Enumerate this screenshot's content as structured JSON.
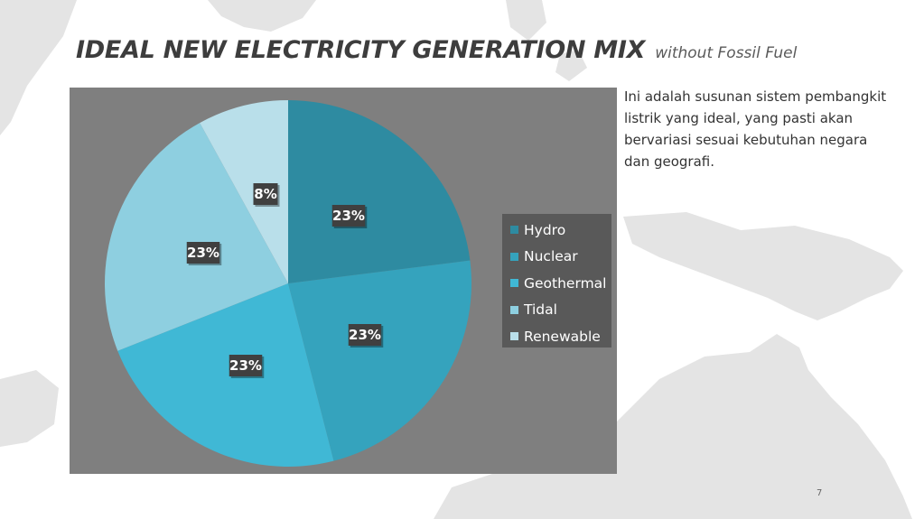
{
  "slide": {
    "title": "IDEAL NEW ELECTRICITY GENERATION MIX",
    "subtitle": "without Fossil Fuel",
    "description": "Ini adalah susunan sistem pembangkit listrik yang ideal, yang pasti akan bervariasi sesuai kebutuhan negara dan geografi.",
    "page_number": "7"
  },
  "chart_data": {
    "type": "pie",
    "categories": [
      "Hydro",
      "Nuclear",
      "Geothermal",
      "Tidal",
      "Renewable"
    ],
    "values": [
      23,
      23,
      23,
      23,
      8
    ],
    "data_labels": [
      "23%",
      "23%",
      "23%",
      "23%",
      "8%"
    ],
    "colors": [
      "#2e8ba1",
      "#35a3bd",
      "#40b8d5",
      "#8ecfe0",
      "#b9dfea"
    ],
    "legend_position": "right",
    "background": "#7f7f7f",
    "legend_background": "#595959",
    "start_angle_deg": 0,
    "direction": "clockwise"
  }
}
